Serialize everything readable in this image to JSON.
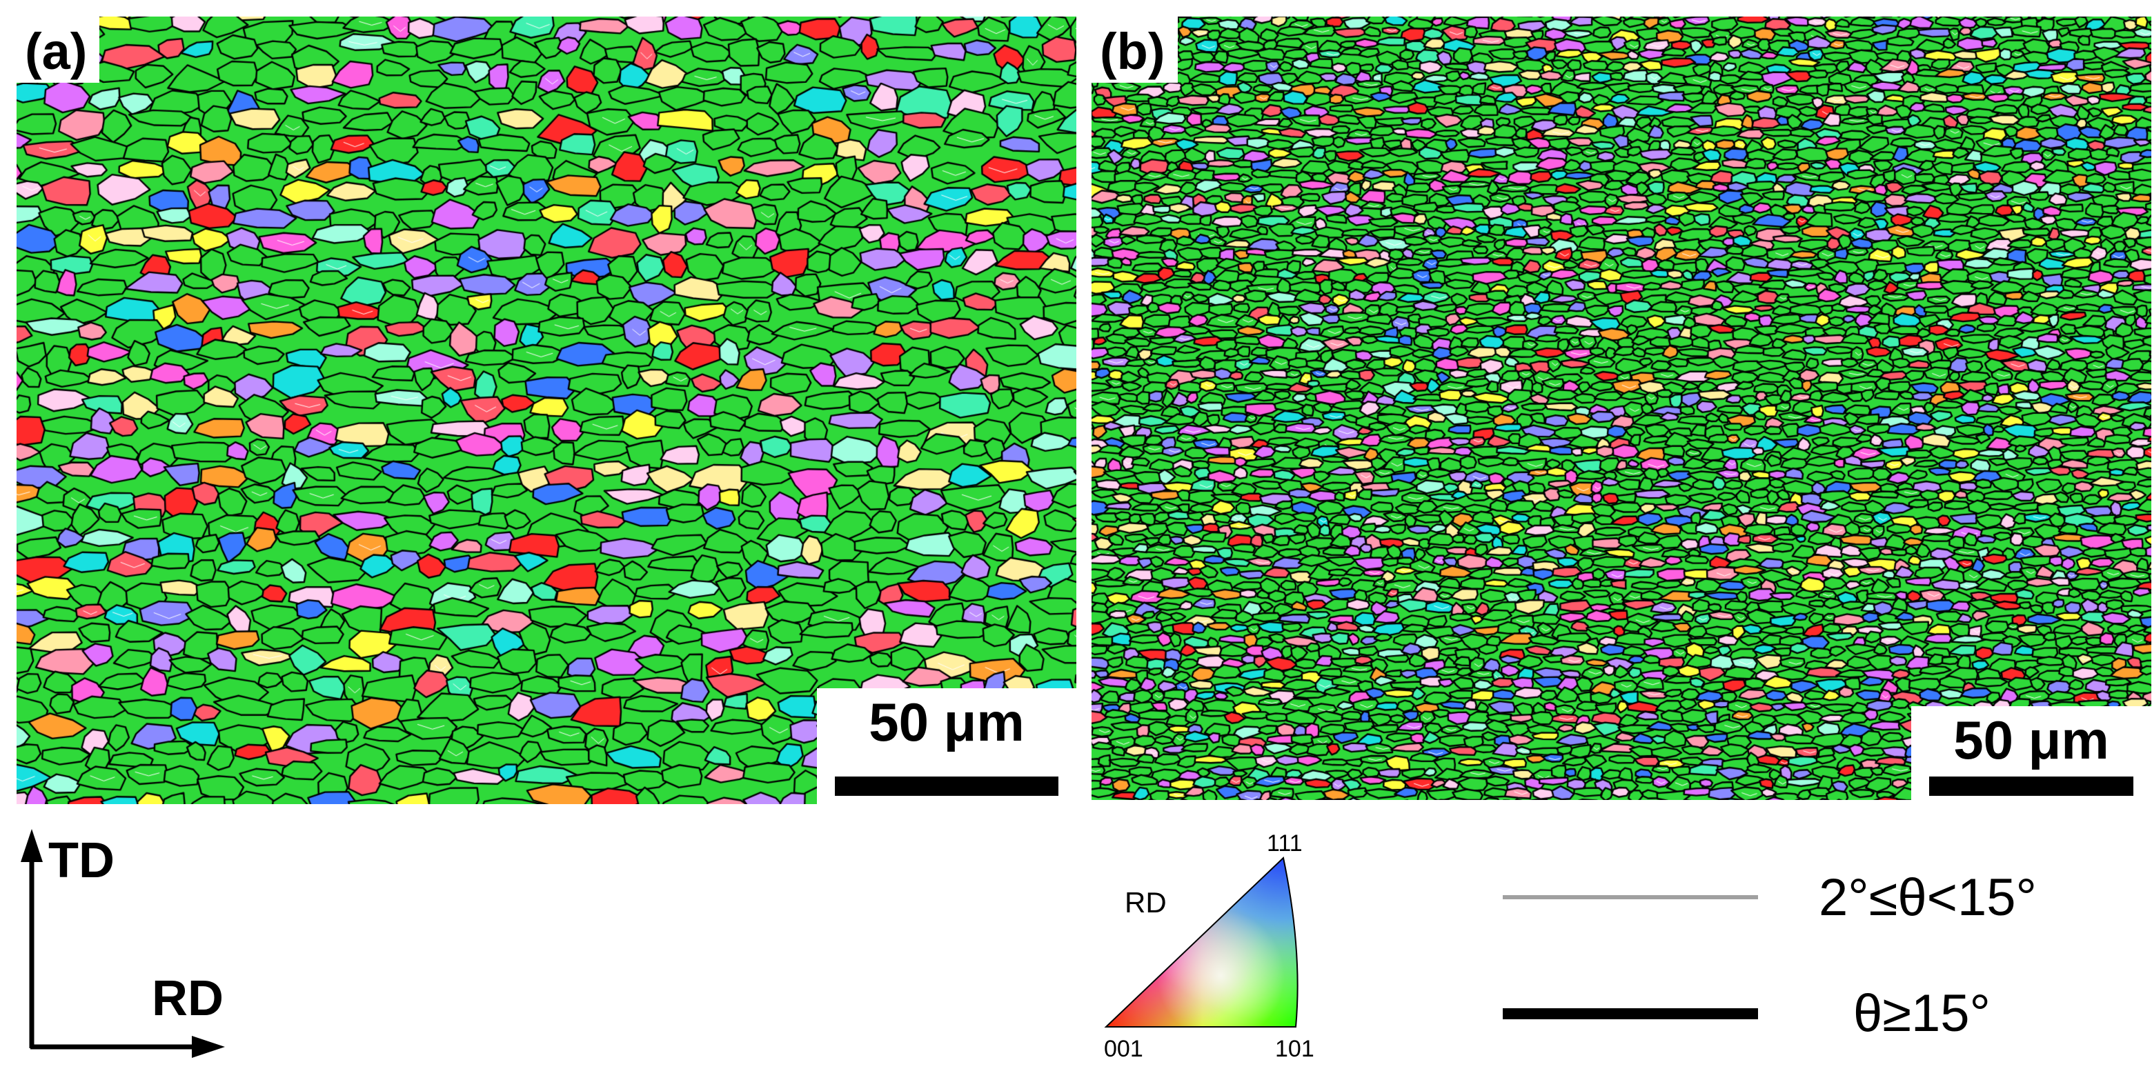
{
  "panels": [
    {
      "label": "(a)",
      "scale_label": "50 μm"
    },
    {
      "label": "(b)",
      "scale_label": "50 μm"
    }
  ],
  "axes": {
    "vertical": "TD",
    "horizontal": "RD"
  },
  "ipf_key": {
    "direction": "RD",
    "corner_001": "001",
    "corner_101": "101",
    "corner_111": "111"
  },
  "boundary_legend": [
    {
      "label": "2°≤θ<15°",
      "color": "#a0a0a0"
    },
    {
      "label": "θ≥15°",
      "color": "#000000"
    }
  ],
  "colors": {
    "dominant_green": "#2fd93a",
    "palette": [
      "#ff2a2a",
      "#ff5a6a",
      "#ff9ab0",
      "#e070ff",
      "#ff60e0",
      "#3a7aff",
      "#8a8aff",
      "#18e0e0",
      "#40f0b0",
      "#ffff40",
      "#fff0a0",
      "#ffa030",
      "#ffd0f0",
      "#a0ffe0",
      "#c090ff"
    ]
  }
}
